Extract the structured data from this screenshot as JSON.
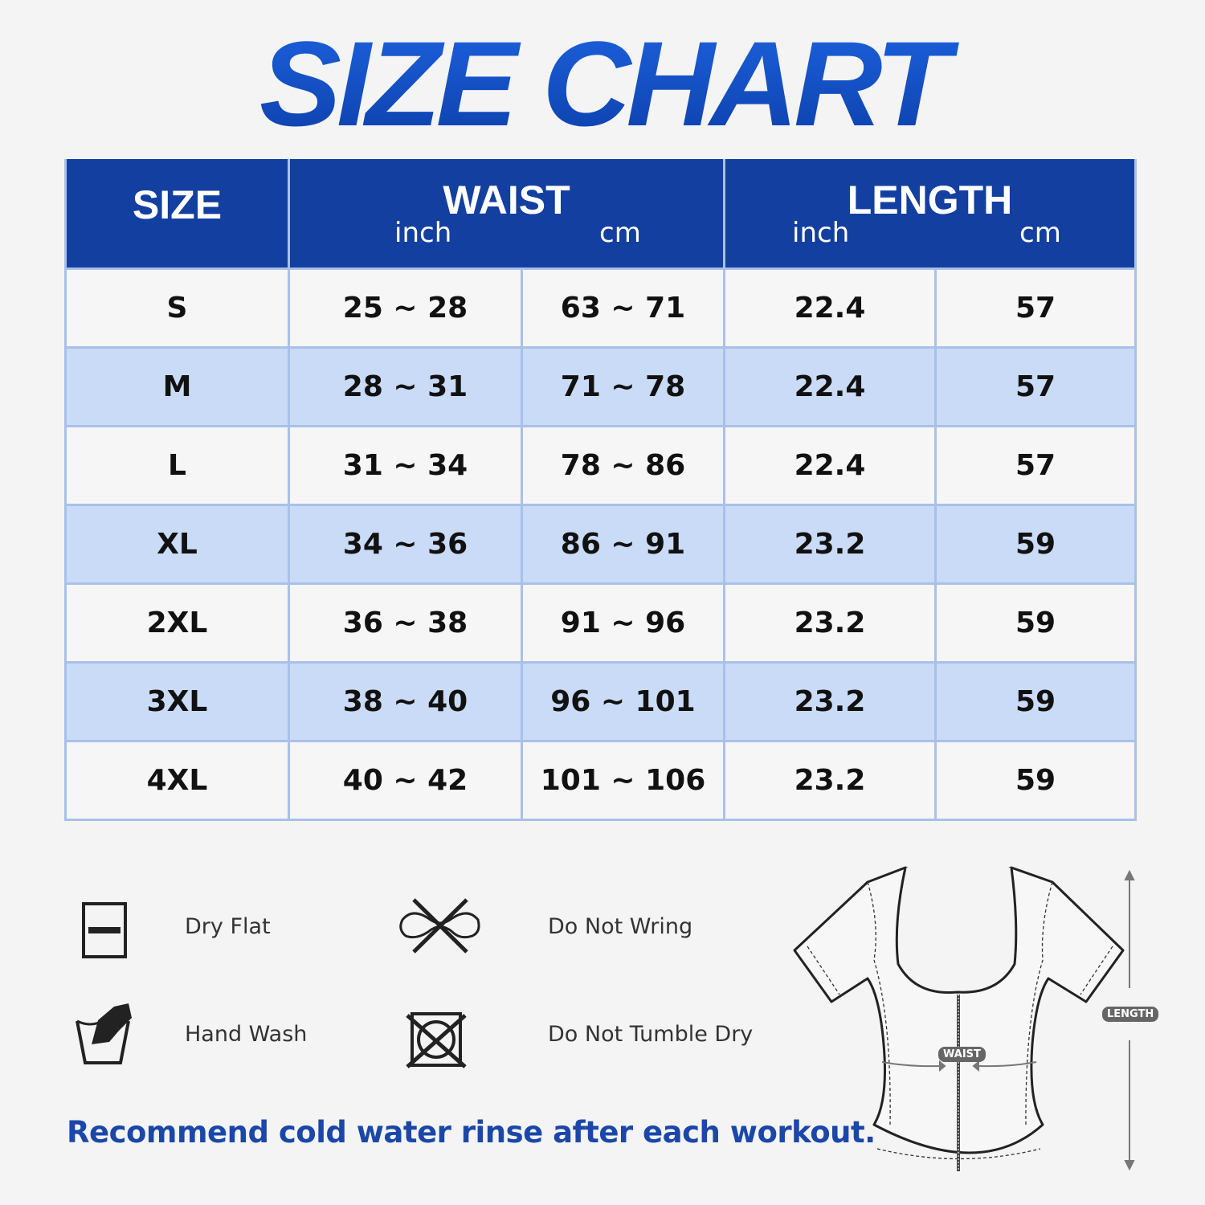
{
  "title": "SIZE CHART",
  "table": {
    "headers": {
      "size": "SIZE",
      "waist": "WAIST",
      "length": "LENGTH",
      "inch": "inch",
      "cm": "cm"
    },
    "rows": [
      {
        "size": "S",
        "waist_inch": "25 ~ 28",
        "waist_cm": "63 ~ 71",
        "length_inch": "22.4",
        "length_cm": "57"
      },
      {
        "size": "M",
        "waist_inch": "28 ~ 31",
        "waist_cm": "71 ~ 78",
        "length_inch": "22.4",
        "length_cm": "57"
      },
      {
        "size": "L",
        "waist_inch": "31 ~ 34",
        "waist_cm": "78 ~ 86",
        "length_inch": "22.4",
        "length_cm": "57"
      },
      {
        "size": "XL",
        "waist_inch": "34 ~ 36",
        "waist_cm": "86 ~ 91",
        "length_inch": "23.2",
        "length_cm": "59"
      },
      {
        "size": "2XL",
        "waist_inch": "36 ~ 38",
        "waist_cm": "91 ~ 96",
        "length_inch": "23.2",
        "length_cm": "59"
      },
      {
        "size": "3XL",
        "waist_inch": "38 ~ 40",
        "waist_cm": "96 ~ 101",
        "length_inch": "23.2",
        "length_cm": "59"
      },
      {
        "size": "4XL",
        "waist_inch": "40 ~ 42",
        "waist_cm": "101 ~ 106",
        "length_inch": "23.2",
        "length_cm": "59"
      }
    ]
  },
  "care": [
    {
      "label": "Dry Flat",
      "icon": "dry-flat-icon"
    },
    {
      "label": "Do Not Wring",
      "icon": "do-not-wring-icon"
    },
    {
      "label": "Hand Wash",
      "icon": "hand-wash-icon"
    },
    {
      "label": "Do Not Tumble Dry",
      "icon": "do-not-tumble-dry-icon"
    }
  ],
  "note": "Recommend cold water rinse after each workout.",
  "diagram": {
    "waist_label": "WAIST",
    "length_label": "LENGTH"
  },
  "colors": {
    "header": "#133fa0",
    "row_alt": "#c9dbf6",
    "title": "#1346b8",
    "note": "#1a47a8"
  }
}
